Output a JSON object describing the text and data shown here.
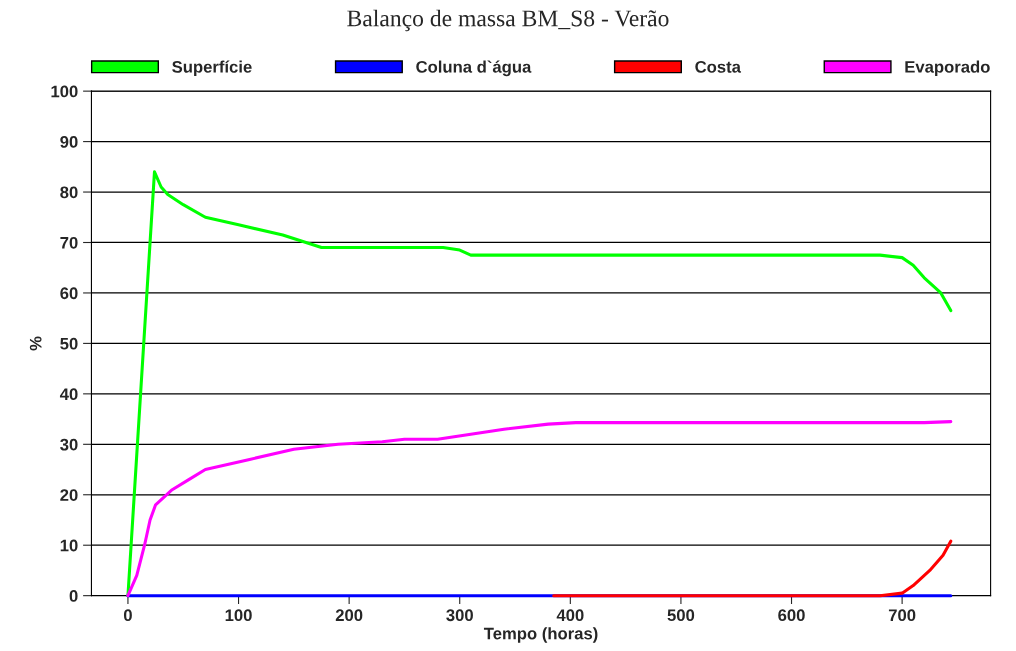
{
  "chart_data": {
    "type": "line",
    "title": "Balanço de massa BM_S8 - Verão",
    "xlabel": "Tempo (horas)",
    "ylabel": "%",
    "xlim": [
      -33,
      780
    ],
    "xticks": [
      0,
      100,
      200,
      300,
      400,
      500,
      600,
      700
    ],
    "ylim": [
      0,
      100
    ],
    "yticks": [
      0,
      10,
      20,
      30,
      40,
      50,
      60,
      70,
      80,
      90,
      100
    ],
    "grid": "y",
    "legend": "top",
    "line_style": "solid",
    "marker": "none",
    "series": [
      {
        "name": "Superfície",
        "color": "#00ff00",
        "x": [
          0,
          24,
          30,
          36,
          50,
          70,
          100,
          140,
          175,
          200,
          250,
          285,
          300,
          310,
          350,
          400,
          500,
          600,
          680,
          700,
          710,
          720,
          735,
          744
        ],
        "values": [
          0,
          84,
          81,
          79.5,
          77.5,
          75,
          73.5,
          71.5,
          69,
          69,
          69,
          69,
          68.5,
          67.5,
          67.5,
          67.5,
          67.5,
          67.5,
          67.5,
          67,
          65.5,
          63,
          60,
          56.5
        ]
      },
      {
        "name": "Coluna d`água",
        "color": "#0000ff",
        "x": [
          0,
          744
        ],
        "values": [
          0,
          0
        ]
      },
      {
        "name": "Costa",
        "color": "#ff0000",
        "x": [
          385,
          680,
          700,
          710,
          725,
          737,
          744
        ],
        "values": [
          0,
          0,
          0.5,
          2,
          5,
          8,
          10.8
        ]
      },
      {
        "name": "Evaporado",
        "color": "#ff00ff",
        "x": [
          0,
          8,
          15,
          20,
          25,
          40,
          55,
          70,
          110,
          150,
          190,
          230,
          250,
          280,
          310,
          340,
          380,
          405,
          500,
          600,
          720,
          744
        ],
        "values": [
          0,
          4,
          10,
          15,
          18,
          21,
          23,
          25,
          27,
          29,
          30,
          30.5,
          31,
          31,
          32,
          33,
          34,
          34.3,
          34.3,
          34.3,
          34.3,
          34.5
        ]
      }
    ]
  }
}
